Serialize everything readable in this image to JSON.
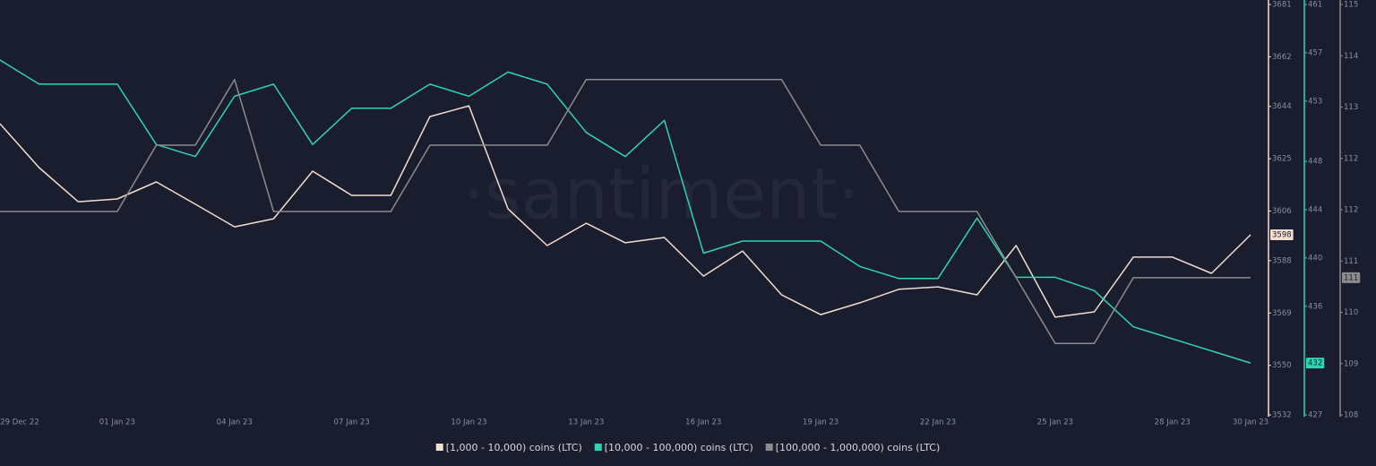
{
  "chart_data": {
    "type": "line",
    "watermark": "·santiment·",
    "categories": [
      "29 Dec 22",
      null,
      null,
      "01 Jan 23",
      null,
      null,
      "04 Jan 23",
      null,
      null,
      "07 Jan 23",
      null,
      null,
      "10 Jan 23",
      null,
      null,
      "13 Jan 23",
      null,
      null,
      "16 Jan 23",
      null,
      null,
      "19 Jan 23",
      null,
      null,
      "22 Jan 23",
      null,
      null,
      "25 Jan 23",
      null,
      null,
      "28 Jan 23",
      null,
      "30 Jan 23"
    ],
    "series": [
      {
        "name": "[1,000 - 10,000) coins (LTC)",
        "color": "#f3dcd0",
        "axis": "y",
        "last_label": "3598",
        "values": [
          3637.7,
          3621.8,
          3609.4,
          3610.4,
          3616.6,
          3608.5,
          3600.3,
          3603.2,
          3620.5,
          3611.7,
          3611.7,
          3640.3,
          3644.2,
          3606.8,
          3593.5,
          3601.6,
          3594.5,
          3596.4,
          3582.4,
          3591.5,
          3575.6,
          3568.4,
          3572.7,
          3577.6,
          3578.5,
          3575.6,
          3593.5,
          3567.5,
          3569.4,
          3589.3,
          3589.3,
          3583.4,
          3597.4
        ]
      },
      {
        "name": "[10,000 - 100,000) coins (LTC)",
        "color": "#2dd4b0",
        "axis": "y2",
        "last_label": "432",
        "values": [
          456.4,
          454.4,
          454.4,
          454.4,
          449.4,
          448.4,
          453.4,
          454.4,
          449.4,
          452.4,
          452.4,
          454.4,
          453.4,
          455.4,
          454.4,
          450.4,
          448.4,
          451.4,
          440.4,
          441.4,
          441.4,
          441.4,
          439.3,
          438.3,
          438.3,
          443.3,
          438.4,
          438.4,
          437.3,
          434.3,
          433.3,
          432.3,
          431.3
        ]
      },
      {
        "name": "[100,000  - 1,000,000) coins (LTC)",
        "color": "#8c8c8c",
        "axis": "y3",
        "last_label": "111",
        "values": [
          111.47,
          111.47,
          111.47,
          111.47,
          112.6,
          112.6,
          113.72,
          111.47,
          111.47,
          111.47,
          111.47,
          112.6,
          112.6,
          112.6,
          112.6,
          113.72,
          113.72,
          113.72,
          113.72,
          113.72,
          113.72,
          112.6,
          112.6,
          111.47,
          111.47,
          111.47,
          110.34,
          109.22,
          109.22,
          110.34,
          110.34,
          110.34,
          110.34
        ]
      }
    ],
    "ylim": [
      3532,
      3681
    ],
    "yticks": [
      3532,
      3550,
      3569,
      3588,
      3606,
      3625,
      3644,
      3662,
      3681
    ],
    "y2lim": [
      427,
      461
    ],
    "y2ticks": [
      427,
      436,
      440,
      444,
      448,
      453,
      457,
      461
    ],
    "y3lim": [
      108,
      115
    ],
    "y3ticks": [
      108,
      {
        "value": 108.875,
        "label": "109"
      },
      {
        "value": 109.75,
        "label": "110"
      },
      {
        "value": 110.625,
        "label": "111"
      },
      {
        "value": 111.5,
        "label": "112"
      },
      {
        "value": 112.375,
        "label": "112"
      },
      {
        "value": 113.25,
        "label": "113"
      },
      {
        "value": 114.125,
        "label": "114"
      },
      115
    ]
  }
}
